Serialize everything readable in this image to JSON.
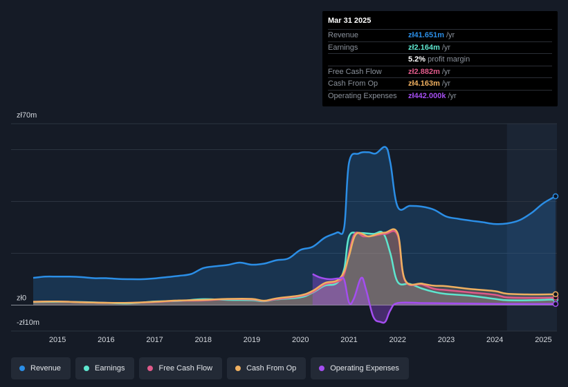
{
  "tooltip": {
    "date": "Mar 31 2025",
    "rows": [
      {
        "label": "Revenue",
        "value": "zł41.651m",
        "unit": "/yr",
        "color": "#2b8ee6"
      },
      {
        "label": "Earnings",
        "value": "zł2.164m",
        "unit": "/yr",
        "color": "#5ee6cf"
      },
      {
        "label": "",
        "value": "5.2%",
        "unit": "profit margin",
        "color": "#ffffff"
      },
      {
        "label": "Free Cash Flow",
        "value": "zł2.882m",
        "unit": "/yr",
        "color": "#e05a8a"
      },
      {
        "label": "Cash From Op",
        "value": "zł4.163m",
        "unit": "/yr",
        "color": "#f0b060"
      },
      {
        "label": "Operating Expenses",
        "value": "zł442.000k",
        "unit": "/yr",
        "color": "#a44ef0"
      }
    ]
  },
  "legend": [
    {
      "label": "Revenue",
      "color": "#2b8ee6"
    },
    {
      "label": "Earnings",
      "color": "#5ee6cf"
    },
    {
      "label": "Free Cash Flow",
      "color": "#e05a8a"
    },
    {
      "label": "Cash From Op",
      "color": "#f0b060"
    },
    {
      "label": "Operating Expenses",
      "color": "#a44ef0"
    }
  ],
  "chart_data": {
    "type": "line",
    "ylim": [
      -10,
      70
    ],
    "y_tick_labels": [
      {
        "value": 70,
        "label": "zł70m"
      },
      {
        "value": 0,
        "label": "zł0"
      },
      {
        "value": -10,
        "label": "-zł10m"
      }
    ],
    "gridlines": [
      70,
      60,
      40,
      20,
      0,
      -10
    ],
    "x_ticks": [
      2015,
      2016,
      2017,
      2018,
      2019,
      2020,
      2021,
      2022,
      2023,
      2024,
      2025
    ],
    "xlim": [
      2014.5,
      2025.25
    ],
    "highlight_start": 2024.25,
    "series": [
      {
        "name": "Revenue",
        "color": "#2b8ee6",
        "fill": true,
        "points": [
          [
            2014.5,
            10.5
          ],
          [
            2014.75,
            11
          ],
          [
            2015,
            11
          ],
          [
            2015.25,
            11
          ],
          [
            2015.5,
            10.8
          ],
          [
            2015.75,
            10.4
          ],
          [
            2016,
            10.4
          ],
          [
            2016.25,
            10.1
          ],
          [
            2016.5,
            10
          ],
          [
            2016.75,
            10
          ],
          [
            2017,
            10.3
          ],
          [
            2017.25,
            10.8
          ],
          [
            2017.5,
            11.3
          ],
          [
            2017.75,
            12
          ],
          [
            2018,
            14.3
          ],
          [
            2018.25,
            15
          ],
          [
            2018.5,
            15.5
          ],
          [
            2018.75,
            16.4
          ],
          [
            2019,
            15.6
          ],
          [
            2019.25,
            16
          ],
          [
            2019.5,
            17.3
          ],
          [
            2019.75,
            18
          ],
          [
            2020,
            21.3
          ],
          [
            2020.25,
            22.5
          ],
          [
            2020.5,
            26
          ],
          [
            2020.75,
            28
          ],
          [
            2020.9,
            30
          ],
          [
            2021,
            55
          ],
          [
            2021.2,
            58.5
          ],
          [
            2021.4,
            59
          ],
          [
            2021.55,
            58.5
          ],
          [
            2021.75,
            61
          ],
          [
            2021.85,
            55
          ],
          [
            2022,
            38
          ],
          [
            2022.25,
            38.3
          ],
          [
            2022.5,
            38
          ],
          [
            2022.75,
            36.8
          ],
          [
            2023,
            34.2
          ],
          [
            2023.25,
            33.3
          ],
          [
            2023.5,
            32.6
          ],
          [
            2023.75,
            32
          ],
          [
            2024,
            31.3
          ],
          [
            2024.25,
            31.5
          ],
          [
            2024.5,
            32.7
          ],
          [
            2024.75,
            35.5
          ],
          [
            2025,
            39.3
          ],
          [
            2025.25,
            42
          ]
        ]
      },
      {
        "name": "Earnings",
        "color": "#5ee6cf",
        "fill": true,
        "points": [
          [
            2014.5,
            1.2
          ],
          [
            2015,
            1.3
          ],
          [
            2015.5,
            1.2
          ],
          [
            2016,
            0.9
          ],
          [
            2016.5,
            0.7
          ],
          [
            2017,
            1.4
          ],
          [
            2017.5,
            1.6
          ],
          [
            2018,
            2.3
          ],
          [
            2018.5,
            2
          ],
          [
            2019,
            1.9
          ],
          [
            2019.25,
            1.5
          ],
          [
            2019.5,
            2.2
          ],
          [
            2020,
            3
          ],
          [
            2020.25,
            4.8
          ],
          [
            2020.5,
            7.5
          ],
          [
            2020.75,
            8.5
          ],
          [
            2020.9,
            14
          ],
          [
            2021,
            26.5
          ],
          [
            2021.2,
            27.8
          ],
          [
            2021.5,
            27.5
          ],
          [
            2021.7,
            27.8
          ],
          [
            2021.85,
            20
          ],
          [
            2022,
            9
          ],
          [
            2022.25,
            8.2
          ],
          [
            2022.5,
            6.4
          ],
          [
            2022.75,
            5.1
          ],
          [
            2023,
            4.3
          ],
          [
            2023.5,
            3.6
          ],
          [
            2024,
            2.4
          ],
          [
            2024.25,
            1.9
          ],
          [
            2024.75,
            1.9
          ],
          [
            2025.25,
            2.2
          ]
        ]
      },
      {
        "name": "Free Cash Flow",
        "color": "#e05a8a",
        "fill": true,
        "points": [
          [
            2014.5,
            1.3
          ],
          [
            2015,
            1.4
          ],
          [
            2015.5,
            1.1
          ],
          [
            2016,
            0.9
          ],
          [
            2016.5,
            0.9
          ],
          [
            2017,
            1.2
          ],
          [
            2017.5,
            1.7
          ],
          [
            2018,
            1.8
          ],
          [
            2018.5,
            2.3
          ],
          [
            2019,
            2.2
          ],
          [
            2019.25,
            1.6
          ],
          [
            2019.5,
            2.3
          ],
          [
            2020,
            3.5
          ],
          [
            2020.25,
            5
          ],
          [
            2020.5,
            8
          ],
          [
            2020.75,
            9
          ],
          [
            2020.9,
            12
          ],
          [
            2021.1,
            27
          ],
          [
            2021.3,
            26.5
          ],
          [
            2021.5,
            26.8
          ],
          [
            2021.75,
            27.5
          ],
          [
            2022,
            27
          ],
          [
            2022.15,
            9.5
          ],
          [
            2022.5,
            8
          ],
          [
            2022.75,
            6.3
          ],
          [
            2023,
            5.8
          ],
          [
            2023.5,
            4.9
          ],
          [
            2024,
            4
          ],
          [
            2024.25,
            3
          ],
          [
            2024.75,
            2.8
          ],
          [
            2025.25,
            2.9
          ]
        ]
      },
      {
        "name": "Cash From Op",
        "color": "#f0b060",
        "fill": true,
        "points": [
          [
            2014.5,
            1.3
          ],
          [
            2015,
            1.4
          ],
          [
            2015.5,
            1.1
          ],
          [
            2016,
            0.9
          ],
          [
            2016.5,
            0.9
          ],
          [
            2017,
            1.3
          ],
          [
            2017.5,
            1.8
          ],
          [
            2018,
            2
          ],
          [
            2018.5,
            2.4
          ],
          [
            2019,
            2.4
          ],
          [
            2019.25,
            1.7
          ],
          [
            2019.5,
            2.6
          ],
          [
            2020,
            3.8
          ],
          [
            2020.25,
            5.5
          ],
          [
            2020.5,
            8.5
          ],
          [
            2020.75,
            9.5
          ],
          [
            2020.9,
            13
          ],
          [
            2021,
            19
          ],
          [
            2021.15,
            27.5
          ],
          [
            2021.4,
            26.5
          ],
          [
            2021.6,
            27.5
          ],
          [
            2021.75,
            28
          ],
          [
            2022,
            27.8
          ],
          [
            2022.15,
            9.8
          ],
          [
            2022.5,
            8.3
          ],
          [
            2022.75,
            7.5
          ],
          [
            2023,
            7.3
          ],
          [
            2023.5,
            6.2
          ],
          [
            2024,
            5.4
          ],
          [
            2024.25,
            4.4
          ],
          [
            2024.75,
            4.1
          ],
          [
            2025.25,
            4.2
          ]
        ]
      },
      {
        "name": "Operating Expenses",
        "color": "#a44ef0",
        "fill": true,
        "x_start": 2020.25,
        "points": [
          [
            2020.25,
            12
          ],
          [
            2020.4,
            10.7
          ],
          [
            2020.6,
            10
          ],
          [
            2020.8,
            10.3
          ],
          [
            2020.9,
            9.8
          ],
          [
            2021,
            1
          ],
          [
            2021.1,
            2.5
          ],
          [
            2021.25,
            10.5
          ],
          [
            2021.35,
            6
          ],
          [
            2021.5,
            -4.5
          ],
          [
            2021.65,
            -6.5
          ],
          [
            2021.75,
            -6.3
          ],
          [
            2021.85,
            -2
          ],
          [
            2022,
            0.8
          ],
          [
            2022.5,
            0.8
          ],
          [
            2023,
            0.7
          ],
          [
            2023.5,
            0.6
          ],
          [
            2024,
            0.5
          ],
          [
            2024.5,
            0.45
          ],
          [
            2025.25,
            0.44
          ]
        ]
      }
    ]
  }
}
